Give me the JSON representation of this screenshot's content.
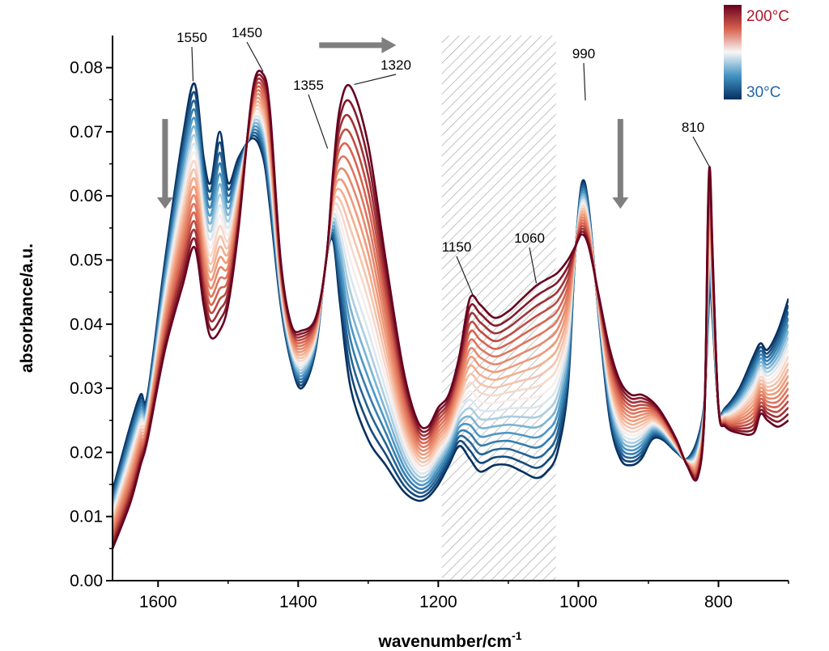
{
  "chart_data": {
    "type": "line",
    "xlabel": "wavenumber/cm",
    "xlabel_sup": "-1",
    "ylabel": "absorbance/a.u.",
    "xlim": [
      1665,
      700
    ],
    "ylim": [
      0,
      0.085
    ],
    "x_reversed": true,
    "x_ticks": [
      1600,
      1400,
      1200,
      1000,
      800
    ],
    "x_tick_labels": [
      "1600",
      "1400",
      "1200",
      "1000",
      "800"
    ],
    "y_ticks": [
      0,
      0.01,
      0.02,
      0.03,
      0.04,
      0.05,
      0.06,
      0.07,
      0.08
    ],
    "y_tick_labels": [
      "0.00",
      "0.01",
      "0.02",
      "0.03",
      "0.04",
      "0.05",
      "0.06",
      "0.07",
      "0.08"
    ],
    "grid": false,
    "colorbar": {
      "max_label": "200°C",
      "min_label": "30°C",
      "max_color": "#b2182b",
      "min_color": "#2166ac"
    },
    "shaded_region": {
      "x_from": 1195,
      "x_to": 1032,
      "pattern": "hatched"
    },
    "annotations": [
      {
        "label": "1550",
        "x": 1550,
        "y": 0.0775
      },
      {
        "label": "1450",
        "x": 1450,
        "y": 0.079
      },
      {
        "label": "1355",
        "x": 1358,
        "y": 0.067
      },
      {
        "label": "1320",
        "x": 1320,
        "y": 0.077
      },
      {
        "label": "1150",
        "x": 1150,
        "y": 0.044
      },
      {
        "label": "1060",
        "x": 1060,
        "y": 0.046
      },
      {
        "label": "990",
        "x": 990,
        "y": 0.0745
      },
      {
        "label": "810",
        "x": 812,
        "y": 0.064
      }
    ],
    "arrows": [
      {
        "direction": "down",
        "x": 1590,
        "y_from": 0.072,
        "y_to": 0.058
      },
      {
        "direction": "right",
        "y": 0.0835,
        "x_from": 1370,
        "x_to": 1260
      },
      {
        "direction": "down",
        "x": 940,
        "y_from": 0.072,
        "y_to": 0.058
      }
    ],
    "series_count": 20,
    "series_low_temp": {
      "x": [
        1665,
        1640,
        1625,
        1615,
        1590,
        1565,
        1548,
        1535,
        1525,
        1512,
        1500,
        1485,
        1465,
        1450,
        1440,
        1425,
        1410,
        1395,
        1375,
        1360,
        1350,
        1340,
        1325,
        1300,
        1275,
        1250,
        1230,
        1215,
        1200,
        1185,
        1170,
        1155,
        1140,
        1120,
        1100,
        1080,
        1060,
        1045,
        1030,
        1015,
        1005,
        995,
        985,
        970,
        955,
        940,
        925,
        910,
        895,
        880,
        860,
        845,
        830,
        820,
        815,
        812,
        808,
        800,
        790,
        770,
        750,
        740,
        730,
        715,
        700
      ],
      "y": [
        0.014,
        0.024,
        0.029,
        0.029,
        0.05,
        0.069,
        0.0775,
        0.066,
        0.062,
        0.07,
        0.062,
        0.066,
        0.069,
        0.066,
        0.058,
        0.043,
        0.034,
        0.03,
        0.036,
        0.05,
        0.053,
        0.043,
        0.03,
        0.022,
        0.018,
        0.014,
        0.0125,
        0.013,
        0.015,
        0.018,
        0.021,
        0.019,
        0.017,
        0.018,
        0.018,
        0.017,
        0.016,
        0.017,
        0.02,
        0.03,
        0.05,
        0.062,
        0.058,
        0.04,
        0.025,
        0.019,
        0.018,
        0.019,
        0.022,
        0.022,
        0.02,
        0.019,
        0.022,
        0.028,
        0.04,
        0.046,
        0.04,
        0.027,
        0.027,
        0.03,
        0.035,
        0.037,
        0.036,
        0.039,
        0.044
      ]
    },
    "series_high_temp": {
      "x": [
        1665,
        1640,
        1625,
        1615,
        1590,
        1565,
        1548,
        1535,
        1525,
        1512,
        1500,
        1485,
        1465,
        1450,
        1440,
        1425,
        1410,
        1395,
        1375,
        1360,
        1350,
        1340,
        1325,
        1300,
        1275,
        1250,
        1230,
        1215,
        1200,
        1185,
        1170,
        1155,
        1140,
        1120,
        1100,
        1080,
        1060,
        1045,
        1030,
        1015,
        1005,
        995,
        985,
        970,
        955,
        940,
        925,
        910,
        895,
        880,
        860,
        845,
        830,
        820,
        815,
        812,
        808,
        800,
        790,
        770,
        750,
        740,
        730,
        715,
        700
      ],
      "y": [
        0.005,
        0.012,
        0.018,
        0.022,
        0.036,
        0.046,
        0.052,
        0.043,
        0.038,
        0.039,
        0.043,
        0.055,
        0.0765,
        0.079,
        0.073,
        0.05,
        0.04,
        0.039,
        0.041,
        0.05,
        0.064,
        0.074,
        0.077,
        0.068,
        0.05,
        0.033,
        0.025,
        0.024,
        0.027,
        0.029,
        0.035,
        0.044,
        0.043,
        0.041,
        0.042,
        0.044,
        0.046,
        0.047,
        0.048,
        0.05,
        0.052,
        0.054,
        0.052,
        0.044,
        0.036,
        0.031,
        0.029,
        0.029,
        0.028,
        0.026,
        0.022,
        0.018,
        0.016,
        0.026,
        0.058,
        0.064,
        0.05,
        0.027,
        0.024,
        0.023,
        0.023,
        0.026,
        0.025,
        0.024,
        0.025
      ]
    }
  }
}
